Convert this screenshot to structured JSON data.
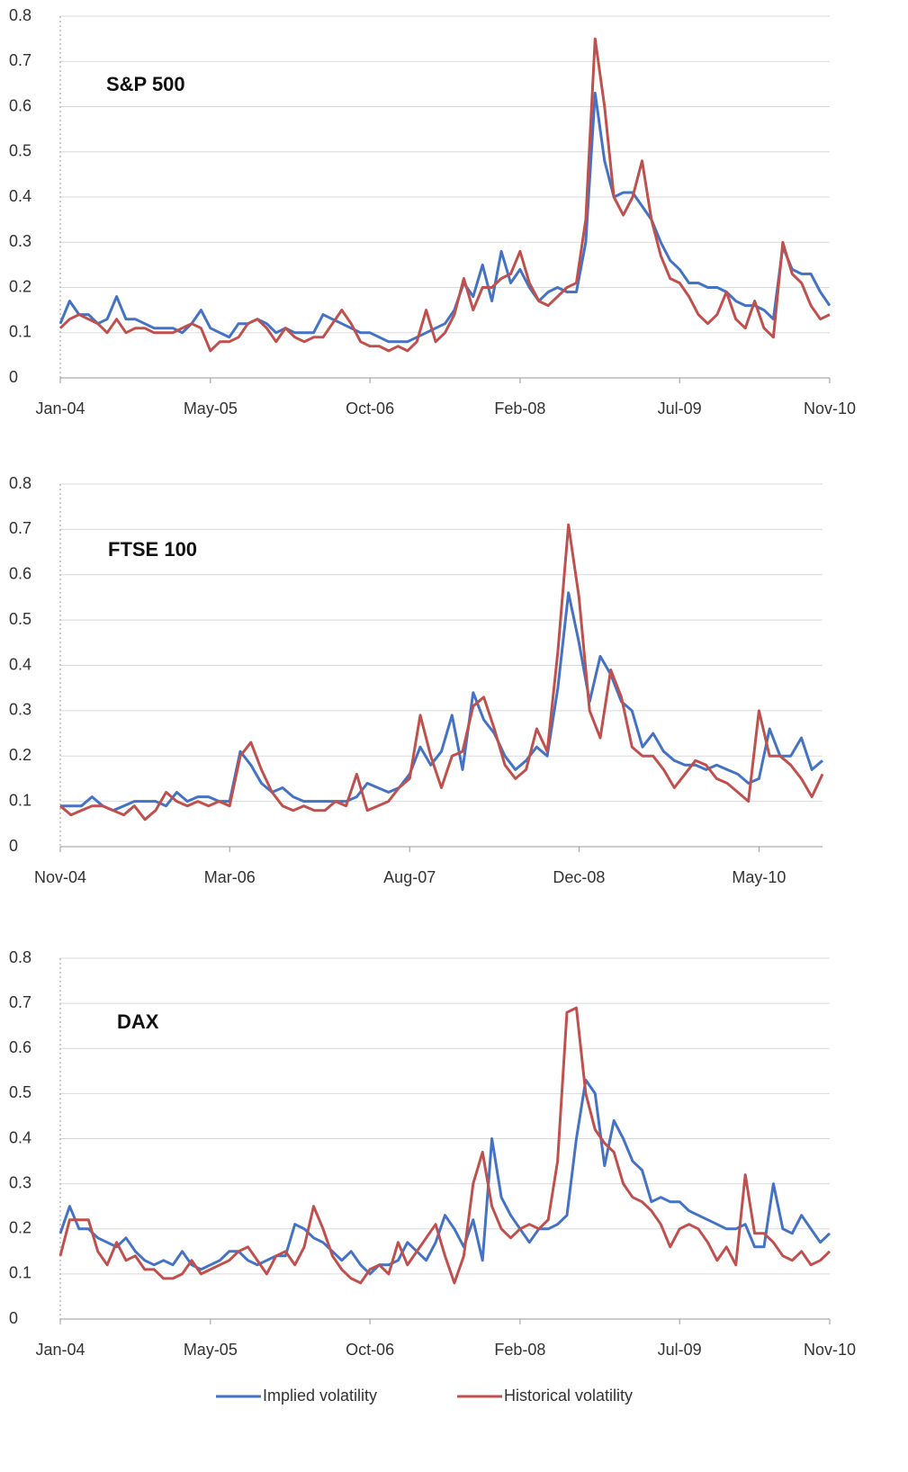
{
  "legend": [
    {
      "name": "Implied volatility",
      "color": "#4472c4"
    },
    {
      "name": "Historical volatility",
      "color": "#c0504d"
    }
  ],
  "chart_data": [
    {
      "type": "line",
      "title": "S&P 500",
      "categories": [
        "Jan-04",
        null,
        null,
        null,
        null,
        null,
        null,
        null,
        null,
        null,
        null,
        null,
        null,
        null,
        null,
        null,
        "May-05",
        null,
        null,
        null,
        null,
        null,
        null,
        null,
        null,
        null,
        null,
        null,
        null,
        null,
        null,
        null,
        null,
        "Oct-06",
        null,
        null,
        null,
        null,
        null,
        null,
        null,
        null,
        null,
        null,
        null,
        null,
        null,
        null,
        null,
        "Feb-08",
        null,
        null,
        null,
        null,
        null,
        null,
        null,
        null,
        null,
        null,
        null,
        null,
        null,
        null,
        null,
        null,
        "Jul-09",
        null,
        null,
        null,
        null,
        null,
        null,
        null,
        null,
        null,
        null,
        null,
        null,
        null,
        null,
        null,
        "Nov-10"
      ],
      "series": [
        {
          "color": "#4472c4",
          "values": [
            0.12,
            0.17,
            0.14,
            0.14,
            0.12,
            0.13,
            0.18,
            0.13,
            0.13,
            0.12,
            0.11,
            0.11,
            0.11,
            0.1,
            0.12,
            0.15,
            0.11,
            0.1,
            0.09,
            0.12,
            0.12,
            0.13,
            0.12,
            0.1,
            0.11,
            0.1,
            0.1,
            0.1,
            0.14,
            0.13,
            0.12,
            0.11,
            0.1,
            0.1,
            0.09,
            0.08,
            0.08,
            0.08,
            0.09,
            0.1,
            0.11,
            0.12,
            0.15,
            0.21,
            0.18,
            0.25,
            0.17,
            0.28,
            0.21,
            0.24,
            0.2,
            0.17,
            0.19,
            0.2,
            0.19,
            0.19,
            0.3,
            0.63,
            0.48,
            0.4,
            0.41,
            0.41,
            0.38,
            0.35,
            0.3,
            0.26,
            0.24,
            0.21,
            0.21,
            0.2,
            0.2,
            0.19,
            0.17,
            0.16,
            0.16,
            0.15,
            0.13,
            0.29,
            0.24,
            0.23,
            0.23,
            0.19,
            0.16
          ]
        },
        {
          "color": "#c0504d",
          "values": [
            0.11,
            0.13,
            0.14,
            0.13,
            0.12,
            0.1,
            0.13,
            0.1,
            0.11,
            0.11,
            0.1,
            0.1,
            0.1,
            0.11,
            0.12,
            0.11,
            0.06,
            0.08,
            0.08,
            0.09,
            0.12,
            0.13,
            0.11,
            0.08,
            0.11,
            0.09,
            0.08,
            0.09,
            0.09,
            0.12,
            0.15,
            0.12,
            0.08,
            0.07,
            0.07,
            0.06,
            0.07,
            0.06,
            0.08,
            0.15,
            0.08,
            0.1,
            0.14,
            0.22,
            0.15,
            0.2,
            0.2,
            0.22,
            0.23,
            0.28,
            0.21,
            0.17,
            0.16,
            0.18,
            0.2,
            0.21,
            0.35,
            0.75,
            0.6,
            0.4,
            0.36,
            0.4,
            0.48,
            0.35,
            0.27,
            0.22,
            0.21,
            0.18,
            0.14,
            0.12,
            0.14,
            0.19,
            0.13,
            0.11,
            0.17,
            0.11,
            0.09,
            0.3,
            0.23,
            0.21,
            0.16,
            0.13,
            0.14
          ]
        }
      ],
      "ylim": [
        0,
        0.8
      ],
      "yticks": [
        0,
        0.1,
        0.2,
        0.3,
        0.4,
        0.5,
        0.6,
        0.7,
        0.8
      ],
      "grid": true
    },
    {
      "type": "line",
      "title": "FTSE 100",
      "categories": [
        "Nov-04",
        null,
        null,
        null,
        null,
        null,
        null,
        null,
        null,
        null,
        null,
        null,
        null,
        null,
        null,
        null,
        "Mar-06",
        null,
        null,
        null,
        null,
        null,
        null,
        null,
        null,
        null,
        null,
        null,
        null,
        null,
        null,
        null,
        null,
        "Aug-07",
        null,
        null,
        null,
        null,
        null,
        null,
        null,
        null,
        null,
        null,
        null,
        null,
        null,
        null,
        null,
        "Dec-08",
        null,
        null,
        null,
        null,
        null,
        null,
        null,
        null,
        null,
        null,
        null,
        null,
        null,
        null,
        null,
        null,
        "May-10",
        null,
        null,
        null,
        null,
        null,
        null
      ],
      "series": [
        {
          "color": "#4472c4",
          "values": [
            0.09,
            0.09,
            0.09,
            0.11,
            0.09,
            0.08,
            0.09,
            0.1,
            0.1,
            0.1,
            0.09,
            0.12,
            0.1,
            0.11,
            0.11,
            0.1,
            0.1,
            0.21,
            0.18,
            0.14,
            0.12,
            0.13,
            0.11,
            0.1,
            0.1,
            0.1,
            0.1,
            0.1,
            0.11,
            0.14,
            0.13,
            0.12,
            0.13,
            0.16,
            0.22,
            0.18,
            0.21,
            0.29,
            0.17,
            0.34,
            0.28,
            0.25,
            0.2,
            0.17,
            0.19,
            0.22,
            0.2,
            0.35,
            0.56,
            0.45,
            0.32,
            0.42,
            0.38,
            0.32,
            0.3,
            0.22,
            0.25,
            0.21,
            0.19,
            0.18,
            0.18,
            0.17,
            0.18,
            0.17,
            0.16,
            0.14,
            0.15,
            0.26,
            0.2,
            0.2,
            0.24,
            0.17,
            0.19
          ]
        },
        {
          "color": "#c0504d",
          "values": [
            0.09,
            0.07,
            0.08,
            0.09,
            0.09,
            0.08,
            0.07,
            0.09,
            0.06,
            0.08,
            0.12,
            0.1,
            0.09,
            0.1,
            0.09,
            0.1,
            0.09,
            0.2,
            0.23,
            0.17,
            0.12,
            0.09,
            0.08,
            0.09,
            0.08,
            0.08,
            0.1,
            0.09,
            0.16,
            0.08,
            0.09,
            0.1,
            0.13,
            0.15,
            0.29,
            0.2,
            0.13,
            0.2,
            0.21,
            0.31,
            0.33,
            0.26,
            0.18,
            0.15,
            0.17,
            0.26,
            0.21,
            0.43,
            0.71,
            0.55,
            0.3,
            0.24,
            0.39,
            0.33,
            0.22,
            0.2,
            0.2,
            0.17,
            0.13,
            0.16,
            0.19,
            0.18,
            0.15,
            0.14,
            0.12,
            0.1,
            0.3,
            0.2,
            0.2,
            0.18,
            0.15,
            0.11,
            0.16
          ]
        }
      ],
      "ylim": [
        0,
        0.8
      ],
      "yticks": [
        0,
        0.1,
        0.2,
        0.3,
        0.4,
        0.5,
        0.6,
        0.7,
        0.8
      ],
      "grid": true
    },
    {
      "type": "line",
      "title": "DAX",
      "categories": [
        "Jan-04",
        null,
        null,
        null,
        null,
        null,
        null,
        null,
        null,
        null,
        null,
        null,
        null,
        null,
        null,
        null,
        "May-05",
        null,
        null,
        null,
        null,
        null,
        null,
        null,
        null,
        null,
        null,
        null,
        null,
        null,
        null,
        null,
        null,
        "Oct-06",
        null,
        null,
        null,
        null,
        null,
        null,
        null,
        null,
        null,
        null,
        null,
        null,
        null,
        null,
        null,
        "Feb-08",
        null,
        null,
        null,
        null,
        null,
        null,
        null,
        null,
        null,
        null,
        null,
        null,
        null,
        null,
        null,
        null,
        "Jul-09",
        null,
        null,
        null,
        null,
        null,
        null,
        null,
        null,
        null,
        null,
        null,
        null,
        null,
        null,
        null,
        "Nov-10"
      ],
      "series": [
        {
          "color": "#4472c4",
          "values": [
            0.19,
            0.25,
            0.2,
            0.2,
            0.18,
            0.17,
            0.16,
            0.18,
            0.15,
            0.13,
            0.12,
            0.13,
            0.12,
            0.15,
            0.12,
            0.11,
            0.12,
            0.13,
            0.15,
            0.15,
            0.13,
            0.12,
            0.13,
            0.14,
            0.14,
            0.21,
            0.2,
            0.18,
            0.17,
            0.15,
            0.13,
            0.15,
            0.12,
            0.1,
            0.12,
            0.12,
            0.13,
            0.17,
            0.15,
            0.13,
            0.17,
            0.23,
            0.2,
            0.16,
            0.22,
            0.13,
            0.4,
            0.27,
            0.23,
            0.2,
            0.17,
            0.2,
            0.2,
            0.21,
            0.23,
            0.4,
            0.53,
            0.5,
            0.34,
            0.44,
            0.4,
            0.35,
            0.33,
            0.26,
            0.27,
            0.26,
            0.26,
            0.24,
            0.23,
            0.22,
            0.21,
            0.2,
            0.2,
            0.21,
            0.16,
            0.16,
            0.3,
            0.2,
            0.19,
            0.23,
            0.2,
            0.17,
            0.19
          ]
        },
        {
          "color": "#c0504d",
          "values": [
            0.14,
            0.22,
            0.22,
            0.22,
            0.15,
            0.12,
            0.17,
            0.13,
            0.14,
            0.11,
            0.11,
            0.09,
            0.09,
            0.1,
            0.13,
            0.1,
            0.11,
            0.12,
            0.13,
            0.15,
            0.16,
            0.13,
            0.1,
            0.14,
            0.15,
            0.12,
            0.16,
            0.25,
            0.2,
            0.14,
            0.11,
            0.09,
            0.08,
            0.11,
            0.12,
            0.1,
            0.17,
            0.12,
            0.15,
            0.18,
            0.21,
            0.14,
            0.08,
            0.14,
            0.3,
            0.37,
            0.25,
            0.2,
            0.18,
            0.2,
            0.21,
            0.2,
            0.22,
            0.35,
            0.68,
            0.69,
            0.5,
            0.42,
            0.39,
            0.37,
            0.3,
            0.27,
            0.26,
            0.24,
            0.21,
            0.16,
            0.2,
            0.21,
            0.2,
            0.17,
            0.13,
            0.16,
            0.12,
            0.32,
            0.19,
            0.19,
            0.17,
            0.14,
            0.13,
            0.15,
            0.12,
            0.13,
            0.15
          ]
        }
      ],
      "ylim": [
        0,
        0.8
      ],
      "yticks": [
        0,
        0.1,
        0.2,
        0.3,
        0.4,
        0.5,
        0.6,
        0.7,
        0.8
      ],
      "grid": true
    }
  ]
}
